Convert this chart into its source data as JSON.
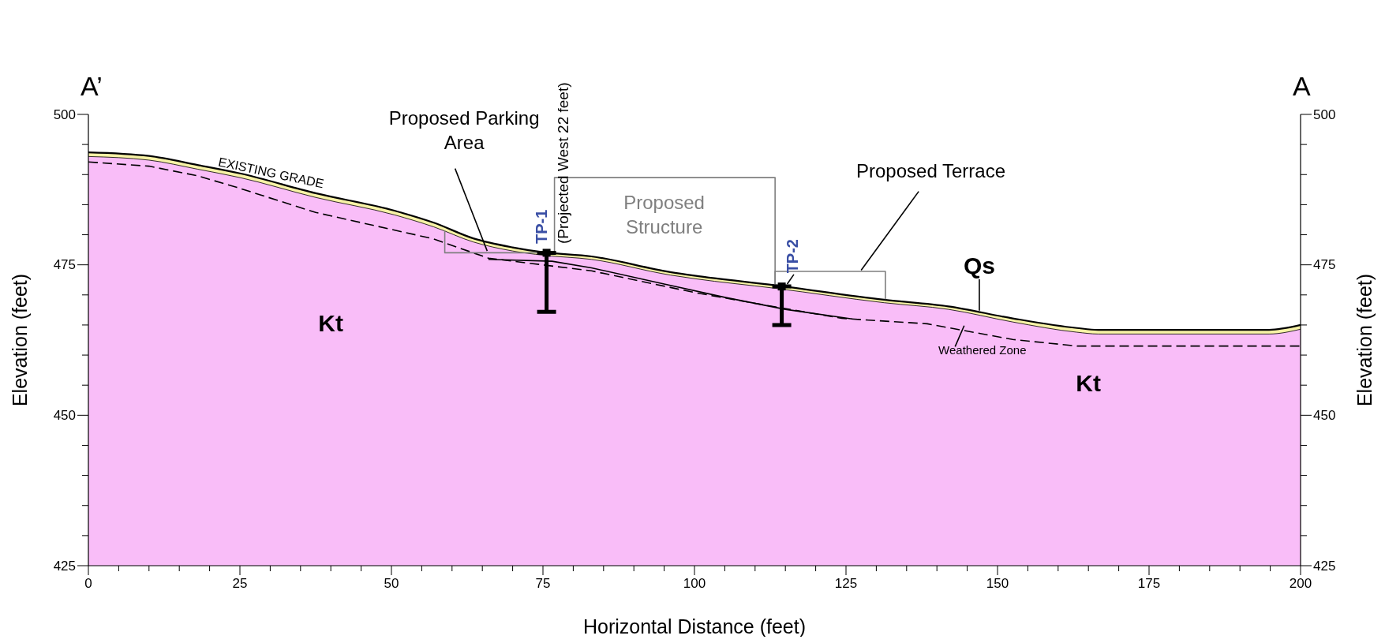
{
  "chart_data": {
    "type": "area",
    "xlabel": "Horizontal Distance (feet)",
    "ylabel": "Elevation (feet)",
    "y2label": "Elevation (feet)",
    "xlim": [
      0,
      200
    ],
    "ylim": [
      425,
      500
    ],
    "y2lim": [
      425,
      500
    ],
    "xticks": [
      0,
      {
        "value": 5,
        "label": null
      },
      {
        "value": 10,
        "label": null
      },
      {
        "value": 15,
        "label": null
      },
      {
        "value": 20,
        "label": null
      },
      25,
      {
        "value": 30,
        "label": null
      },
      {
        "value": 35,
        "label": null
      },
      {
        "value": 40,
        "label": null
      },
      {
        "value": 45,
        "label": null
      },
      50,
      {
        "value": 55,
        "label": null
      },
      {
        "value": 60,
        "label": null
      },
      {
        "value": 65,
        "label": null
      },
      {
        "value": 70,
        "label": null
      },
      75,
      {
        "value": 80,
        "label": null
      },
      {
        "value": 85,
        "label": null
      },
      {
        "value": 90,
        "label": null
      },
      {
        "value": 95,
        "label": null
      },
      100,
      {
        "value": 105,
        "label": null
      },
      {
        "value": 110,
        "label": null
      },
      {
        "value": 115,
        "label": null
      },
      {
        "value": 120,
        "label": null
      },
      125,
      {
        "value": 130,
        "label": null
      },
      {
        "value": 135,
        "label": null
      },
      {
        "value": 140,
        "label": null
      },
      {
        "value": 145,
        "label": null
      },
      150,
      {
        "value": 155,
        "label": null
      },
      {
        "value": 160,
        "label": null
      },
      {
        "value": 165,
        "label": null
      },
      {
        "value": 170,
        "label": null
      },
      175,
      {
        "value": 180,
        "label": null
      },
      {
        "value": 185,
        "label": null
      },
      {
        "value": 190,
        "label": null
      },
      {
        "value": 195,
        "label": null
      },
      200
    ],
    "yticks": [
      425,
      {
        "value": 430,
        "label": null
      },
      {
        "value": 435,
        "label": null
      },
      {
        "value": 440,
        "label": null
      },
      {
        "value": 445,
        "label": null
      },
      450,
      {
        "value": 455,
        "label": null
      },
      {
        "value": 460,
        "label": null
      },
      {
        "value": 465,
        "label": null
      },
      {
        "value": 470,
        "label": null
      },
      475,
      {
        "value": 480,
        "label": null
      },
      {
        "value": 485,
        "label": null
      },
      {
        "value": 490,
        "label": null
      },
      {
        "value": 495,
        "label": null
      },
      500
    ],
    "y2ticks": [
      425,
      {
        "value": 430,
        "label": null
      },
      {
        "value": 435,
        "label": null
      },
      {
        "value": 440,
        "label": null
      },
      {
        "value": 445,
        "label": null
      },
      450,
      {
        "value": 455,
        "label": null
      },
      {
        "value": 460,
        "label": null
      },
      {
        "value": 465,
        "label": null
      },
      {
        "value": 470,
        "label": null
      },
      475,
      {
        "value": 480,
        "label": null
      },
      {
        "value": 485,
        "label": null
      },
      {
        "value": 490,
        "label": null
      },
      {
        "value": 495,
        "label": null
      },
      500
    ],
    "series": [
      {
        "name": "Qs",
        "color": "#f7f2a6",
        "x": [
          0,
          10,
          18,
          25,
          37.5,
          50.5,
          57,
          63.5,
          70,
          75,
          83,
          96,
          100,
          113.3,
          131.3,
          141.9,
          152.5,
          163.1,
          166.6,
          194.8,
          200
        ],
        "values": [
          493.7,
          493.1,
          491.6,
          490.2,
          486.9,
          484.0,
          482.0,
          479.4,
          477.9,
          477.1,
          476.4,
          473.8,
          473.2,
          471.6,
          469.2,
          468.1,
          466.1,
          464.5,
          464.2,
          464.2,
          465.0
        ]
      },
      {
        "name": "Kt",
        "color": "#f9bdf8",
        "x": [
          0,
          10,
          18,
          25,
          37.5,
          50.5,
          57,
          63.5,
          70,
          75,
          83,
          96,
          100,
          113.3,
          131.3,
          141.9,
          152.5,
          163.1,
          166.6,
          194.8,
          200
        ],
        "values": [
          493.0,
          492.4,
          490.9,
          489.5,
          486.2,
          483.3,
          481.3,
          478.8,
          477.3,
          476.6,
          475.9,
          473.3,
          472.7,
          471.1,
          468.7,
          467.6,
          465.5,
          463.8,
          463.5,
          463.5,
          464.3
        ]
      },
      {
        "name": "Weathered Zone",
        "type": "line",
        "color": "#000000",
        "line_style": "dashed",
        "x": [
          0,
          10,
          18,
          24.4,
          37.5,
          57,
          66,
          83,
          100,
          110,
          124.3,
          138.4,
          152.5,
          163.1,
          200
        ],
        "values": [
          492.1,
          491.4,
          489.8,
          487.9,
          483.7,
          479.3,
          476.1,
          474.0,
          470.4,
          468.6,
          466.1,
          465.2,
          462.6,
          461.5,
          461.5
        ]
      },
      {
        "type": "line",
        "color": "#000000",
        "x": [
          66,
          76.5,
          83,
          95,
          105,
          115,
          126
        ],
        "values": [
          475.9,
          475.6,
          474.5,
          471.8,
          469.6,
          467.6,
          466.0
        ]
      },
      {
        "name": "Proposed Parking Area",
        "type": "line",
        "color": "#7f7f7f",
        "x": [
          58.8,
          58.8,
          76.9
        ],
        "values": [
          480.7,
          477.0,
          477.0
        ]
      },
      {
        "name": "Proposed Structure",
        "type": "line",
        "color": "#7f7f7f",
        "x": [
          76.9,
          76.9,
          113.3,
          113.3
        ],
        "values": [
          477.0,
          489.5,
          489.5,
          471.5
        ]
      },
      {
        "name": "Proposed Terrace",
        "type": "line",
        "color": "#7f7f7f",
        "x": [
          113.3,
          113.3,
          131.5,
          131.5
        ],
        "values": [
          471.5,
          473.9,
          473.9,
          469.3
        ]
      },
      {
        "name": "TP-1",
        "type": "scatter",
        "color": "#000000",
        "marker": "square",
        "x": [
          75.6
        ],
        "values": [
          477.0
        ],
        "errors": [
          [
            467.2,
            477.0
          ]
        ]
      },
      {
        "name": "TP-2",
        "type": "scatter",
        "color": "#000000",
        "marker": "square",
        "x": [
          114.4
        ],
        "values": [
          471.4
        ],
        "errors": [
          [
            465.0,
            471.4
          ]
        ]
      }
    ],
    "annotations": [
      "A’",
      "A",
      "(Projected West 22 feet)",
      {
        "text": "EXISTING GRADE",
        "x": 30,
        "y": 489.6
      },
      "Kt"
    ]
  }
}
